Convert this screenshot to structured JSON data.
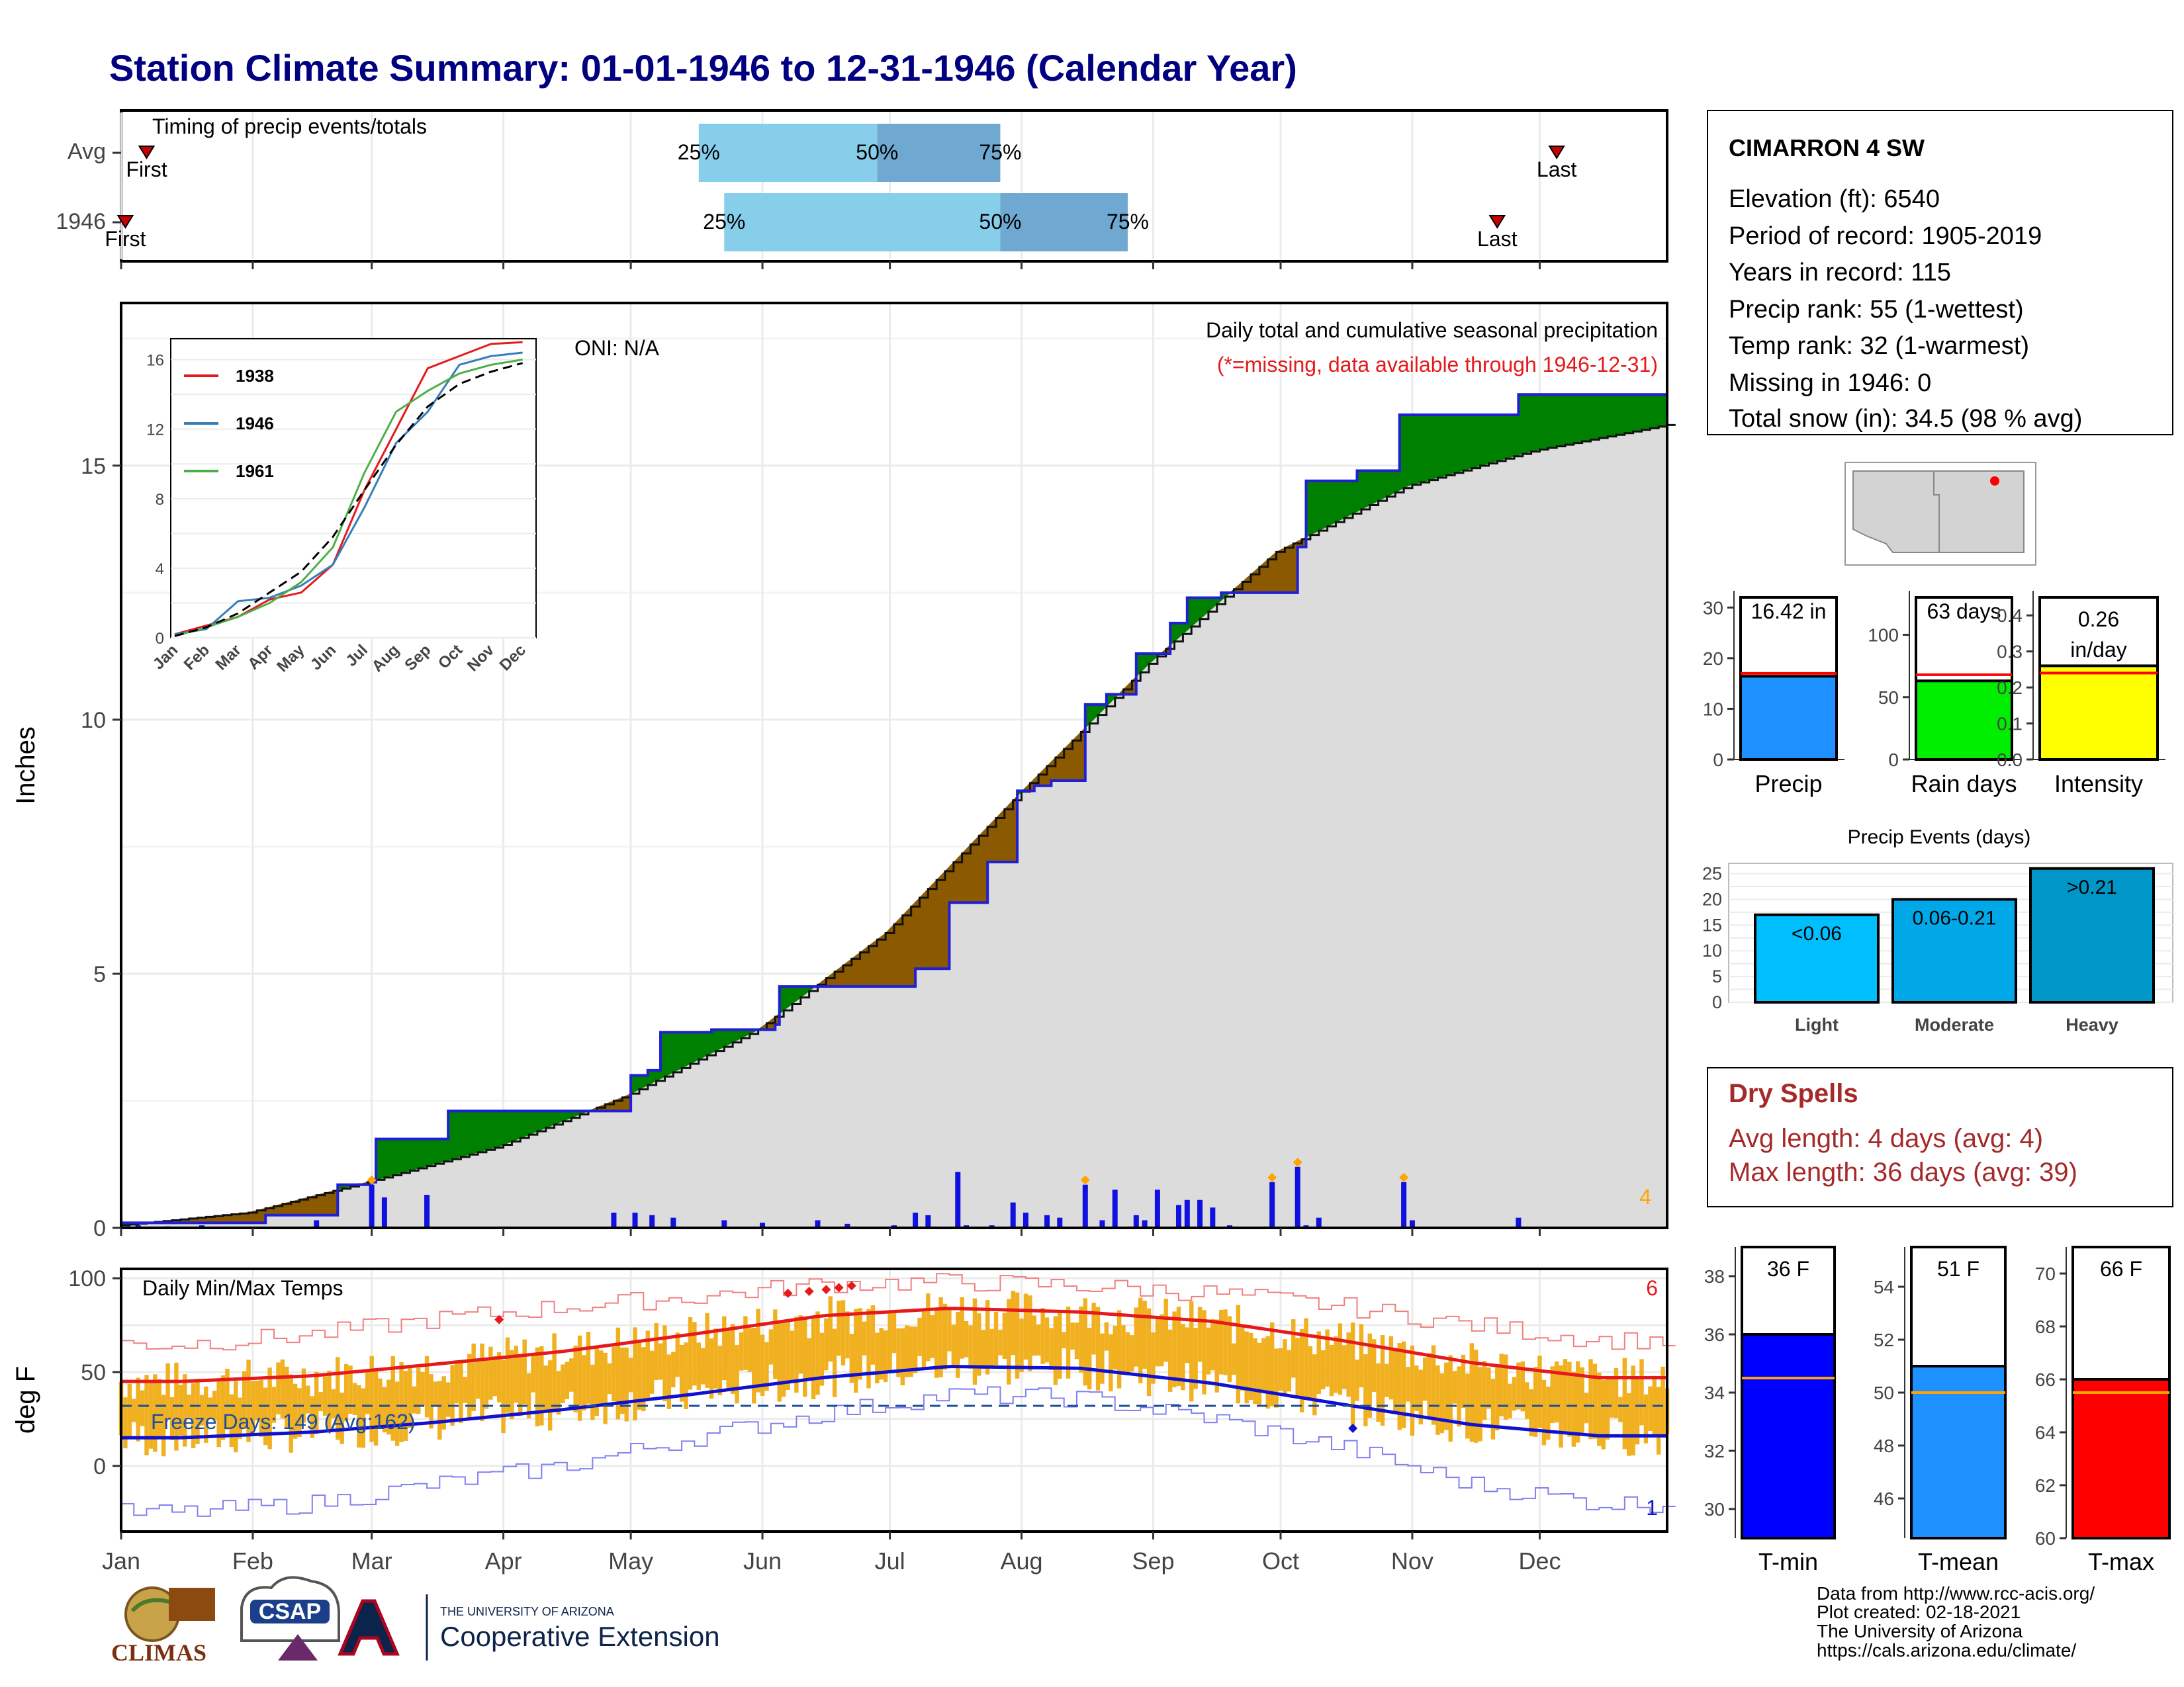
{
  "title": "Station Climate Summary: 01-01-1946 to 12-31-1946 (Calendar Year)",
  "colors": {
    "title": "#000080",
    "q_light": "#87ceeb",
    "q_dark": "#6fa8d0",
    "obs_line": "#1f1fd6",
    "avg_area": "#dcdcdc",
    "above": "#008000",
    "below": "#8b5a00",
    "tmax": "#e41a1c",
    "tmin": "#1010d0",
    "temp_bar": "#f0b020",
    "dry_spells": "#a52a2a"
  },
  "timing": {
    "title": "Timing of precip events/totals",
    "row_labels": [
      "Avg",
      "1946"
    ],
    "avg": {
      "first_day": 7,
      "q25_day": 137,
      "q50_day": 179,
      "q75_day": 208,
      "last_day": 339,
      "first_label": "First",
      "last_label": "Last",
      "q25_label": "25%",
      "q50_label": "50%",
      "q75_label": "75%"
    },
    "year": {
      "first_day": 2,
      "q25_day": 143,
      "q50_day": 208,
      "q75_day": 238,
      "last_day": 325,
      "first_label": "First",
      "last_label": "Last",
      "q25_label": "25%",
      "q50_label": "50%",
      "q75_label": "75%"
    }
  },
  "precip_panel": {
    "ylabel": "Inches",
    "oni": "ONI: N/A",
    "title": "Daily total and cumulative seasonal precipitation",
    "subtitle": "(*=missing, data available through 1946-12-31)",
    "corner_count": "4",
    "yticks": [
      "0",
      "5",
      "10",
      "15"
    ]
  },
  "inset": {
    "legend": [
      {
        "name": "1938",
        "color": "#e41a1c"
      },
      {
        "name": "1946",
        "color": "#377eb8"
      },
      {
        "name": "1961",
        "color": "#4daf4a"
      }
    ],
    "yticks": [
      "0",
      "4",
      "8",
      "12",
      "16"
    ],
    "xticks": [
      "Jan",
      "Feb",
      "Mar",
      "Apr",
      "May",
      "Jun",
      "Jul",
      "Aug",
      "Sep",
      "Oct",
      "Nov",
      "Dec"
    ]
  },
  "temp_panel": {
    "ylabel": "deg F",
    "title": "Daily Min/Max Temps",
    "freeze": "Freeze Days: 149 (Avg:162)",
    "corner_top": "6",
    "corner_bottom": "1",
    "yticks": [
      "0",
      "50",
      "100"
    ]
  },
  "months": [
    "Jan",
    "Feb",
    "Mar",
    "Apr",
    "May",
    "Jun",
    "Jul",
    "Aug",
    "Sep",
    "Oct",
    "Nov",
    "Dec"
  ],
  "station": {
    "name": "CIMARRON 4 SW",
    "lines": [
      "Elevation (ft): 6540",
      "Period of record: 1905-2019",
      "Years in record: 115",
      "Precip rank: 55 (1-wettest)",
      "Temp rank: 32 (1-warmest)",
      "Missing in 1946: 0",
      "Total snow (in): 34.5 (98 % avg)"
    ]
  },
  "mini_bars": [
    {
      "label": "Precip",
      "value_label": "16.42 in",
      "yticks": [
        "0",
        "10",
        "20",
        "30"
      ]
    },
    {
      "label": "Rain days",
      "value_label": "63 days",
      "yticks": [
        "0",
        "50",
        "100"
      ]
    },
    {
      "label": "Intensity",
      "value_label": "0.26 in/day",
      "yticks": [
        "0.0",
        "0.1",
        "0.2",
        "0.3",
        "0.4"
      ]
    }
  ],
  "events": {
    "title": "Precip Events (days)",
    "yticks": [
      "0",
      "5",
      "10",
      "15",
      "20",
      "25"
    ],
    "categories": [
      "Light",
      "Moderate",
      "Heavy"
    ],
    "bar_labels": [
      "<0.06",
      "0.06-0.21",
      ">0.21"
    ]
  },
  "dry_spells": {
    "title": "Dry Spells",
    "avg_line": "Avg length: 4 days (avg: 4)",
    "max_line": "Max length: 36 days (avg: 39)"
  },
  "temp_bars": [
    {
      "label": "T-min",
      "value_label": "36 F",
      "yticks": [
        "30",
        "32",
        "34",
        "36",
        "38"
      ]
    },
    {
      "label": "T-mean",
      "value_label": "51 F",
      "yticks": [
        "46",
        "48",
        "50",
        "52",
        "54"
      ]
    },
    {
      "label": "T-max",
      "value_label": "66 F",
      "yticks": [
        "60",
        "62",
        "64",
        "66",
        "68",
        "70"
      ]
    }
  ],
  "footer": {
    "lines": [
      "Data from http://www.rcc-acis.org/",
      "Plot created: 02-18-2021",
      "The University of Arizona",
      "https://cals.arizona.edu/climate/"
    ],
    "logo_climas": "CLIMAS",
    "logo_csap": "CSAP",
    "logo_ua_small": "THE UNIVERSITY OF ARIZONA",
    "logo_ua_big": "Cooperative Extension"
  },
  "chart_data": [
    {
      "type": "area",
      "title": "Daily total and cumulative seasonal precipitation",
      "ylabel": "Inches",
      "xlabel": "",
      "ylim": [
        0,
        18.2
      ],
      "x_unit": "day of year",
      "series": [
        {
          "name": "1946",
          "x": [
            1,
            35,
            52,
            60,
            61,
            70,
            78,
            90,
            105,
            116,
            121,
            125,
            128,
            134,
            140,
            148,
            155,
            156,
            167,
            188,
            196,
            200,
            205,
            212,
            216,
            220,
            228,
            233,
            240,
            248,
            252,
            260,
            263,
            268,
            275,
            278,
            280,
            292,
            302,
            330,
            365
          ],
          "values": [
            0.1,
            0.25,
            0.85,
            0.9,
            1.75,
            1.75,
            2.3,
            2.3,
            2.3,
            2.3,
            3.0,
            3.1,
            3.85,
            3.85,
            3.9,
            3.9,
            4.0,
            4.75,
            4.75,
            5.1,
            6.4,
            6.4,
            7.2,
            8.6,
            8.7,
            8.8,
            10.3,
            10.5,
            11.3,
            11.9,
            12.4,
            12.5,
            12.5,
            12.5,
            12.5,
            13.4,
            14.7,
            14.9,
            16.0,
            16.4,
            16.42
          ]
        },
        {
          "name": "Average",
          "x": [
            1,
            31,
            59,
            90,
            120,
            151,
            181,
            212,
            243,
            273,
            304,
            334,
            365
          ],
          "values": [
            0.05,
            0.3,
            0.9,
            1.6,
            2.6,
            3.9,
            5.8,
            8.5,
            11.1,
            13.3,
            14.6,
            15.3,
            15.8
          ]
        },
        {
          "name": "Daily precip",
          "x": [
            5,
            12,
            20,
            47,
            60,
            63,
            73,
            117,
            122,
            126,
            131,
            143,
            152,
            165,
            172,
            183,
            188,
            191,
            198,
            200,
            206,
            211,
            214,
            219,
            222,
            228,
            232,
            235,
            240,
            242,
            245,
            250,
            252,
            255,
            258,
            262,
            272,
            278,
            280,
            283,
            303,
            305,
            330
          ],
          "values": [
            0.05,
            0.03,
            0.05,
            0.15,
            0.85,
            0.6,
            0.65,
            0.3,
            0.3,
            0.25,
            0.2,
            0.15,
            0.1,
            0.15,
            0.08,
            0.05,
            0.3,
            0.25,
            1.1,
            0.05,
            0.05,
            0.5,
            0.3,
            0.25,
            0.2,
            0.85,
            0.15,
            0.75,
            0.25,
            0.15,
            0.75,
            0.45,
            0.55,
            0.55,
            0.4,
            0.05,
            0.9,
            1.2,
            0.05,
            0.2,
            0.9,
            0.15,
            0.2
          ]
        }
      ]
    },
    {
      "type": "line",
      "title": "",
      "ylim": [
        0,
        17
      ],
      "xlabel": "",
      "ylabel": "",
      "categories": [
        "Jan",
        "Feb",
        "Mar",
        "Apr",
        "May",
        "Jun",
        "Jul",
        "Aug",
        "Sep",
        "Oct",
        "Nov",
        "Dec"
      ],
      "series": [
        {
          "name": "1938",
          "values": [
            0.2,
            0.7,
            1.2,
            2.2,
            2.6,
            4.2,
            8.5,
            12.0,
            15.5,
            16.2,
            16.9,
            17.0
          ]
        },
        {
          "name": "1946",
          "values": [
            0.2,
            0.5,
            2.1,
            2.3,
            3.0,
            4.2,
            7.5,
            11.2,
            13.0,
            15.7,
            16.2,
            16.4
          ]
        },
        {
          "name": "1961",
          "values": [
            0.1,
            0.6,
            1.2,
            2.0,
            3.2,
            5.2,
            9.5,
            13.0,
            14.2,
            15.2,
            15.7,
            16.0
          ]
        },
        {
          "name": "Average",
          "values": [
            0.1,
            0.6,
            1.4,
            2.6,
            3.8,
            5.8,
            8.5,
            11.1,
            13.3,
            14.6,
            15.3,
            15.8
          ]
        }
      ]
    },
    {
      "type": "line",
      "title": "Daily Min/Max Temps",
      "ylabel": "deg F",
      "xlabel": "",
      "ylim": [
        -35,
        105
      ],
      "categories": [
        "Jan",
        "Feb",
        "Mar",
        "Apr",
        "May",
        "Jun",
        "Jul",
        "Aug",
        "Sep",
        "Oct",
        "Nov",
        "Dec"
      ],
      "series": [
        {
          "name": "Avg max",
          "values": [
            45,
            48,
            54,
            61,
            70,
            80,
            84,
            82,
            77,
            67,
            55,
            47
          ]
        },
        {
          "name": "Avg min",
          "values": [
            15,
            18,
            23,
            30,
            38,
            47,
            53,
            52,
            44,
            33,
            22,
            16
          ]
        },
        {
          "name": "Record max",
          "values": [
            65,
            70,
            78,
            85,
            90,
            97,
            98,
            96,
            92,
            85,
            75,
            67
          ]
        },
        {
          "name": "Record min",
          "values": [
            -25,
            -20,
            -10,
            0,
            15,
            28,
            38,
            36,
            25,
            10,
            -10,
            -20
          ]
        },
        {
          "name": "Freeze threshold",
          "values": [
            32,
            32,
            32,
            32,
            32,
            32,
            32,
            32,
            32,
            32,
            32,
            32
          ]
        }
      ]
    },
    {
      "type": "bar",
      "title": "",
      "categories": [
        "Precip",
        "Rain days",
        "Intensity"
      ],
      "series": [
        {
          "name": "1946",
          "values": [
            16.42,
            63,
            0.26
          ]
        },
        {
          "name": "Average",
          "values": [
            17.0,
            68,
            0.24
          ]
        }
      ],
      "ylim_each": [
        [
          0,
          32
        ],
        [
          0,
          130
        ],
        [
          0,
          0.45
        ]
      ]
    },
    {
      "type": "bar",
      "title": "Precip Events (days)",
      "categories": [
        "Light",
        "Moderate",
        "Heavy"
      ],
      "values": [
        17,
        20,
        26
      ],
      "ylim": [
        0,
        27
      ]
    },
    {
      "type": "bar",
      "title": "",
      "categories": [
        "T-min",
        "T-mean",
        "T-max"
      ],
      "series": [
        {
          "name": "1946",
          "values": [
            36,
            51,
            66
          ]
        },
        {
          "name": "Average",
          "values": [
            34.5,
            50,
            65.5
          ]
        }
      ],
      "ylim_each": [
        [
          29,
          39
        ],
        [
          44.5,
          55.5
        ],
        [
          60,
          71
        ]
      ]
    }
  ]
}
